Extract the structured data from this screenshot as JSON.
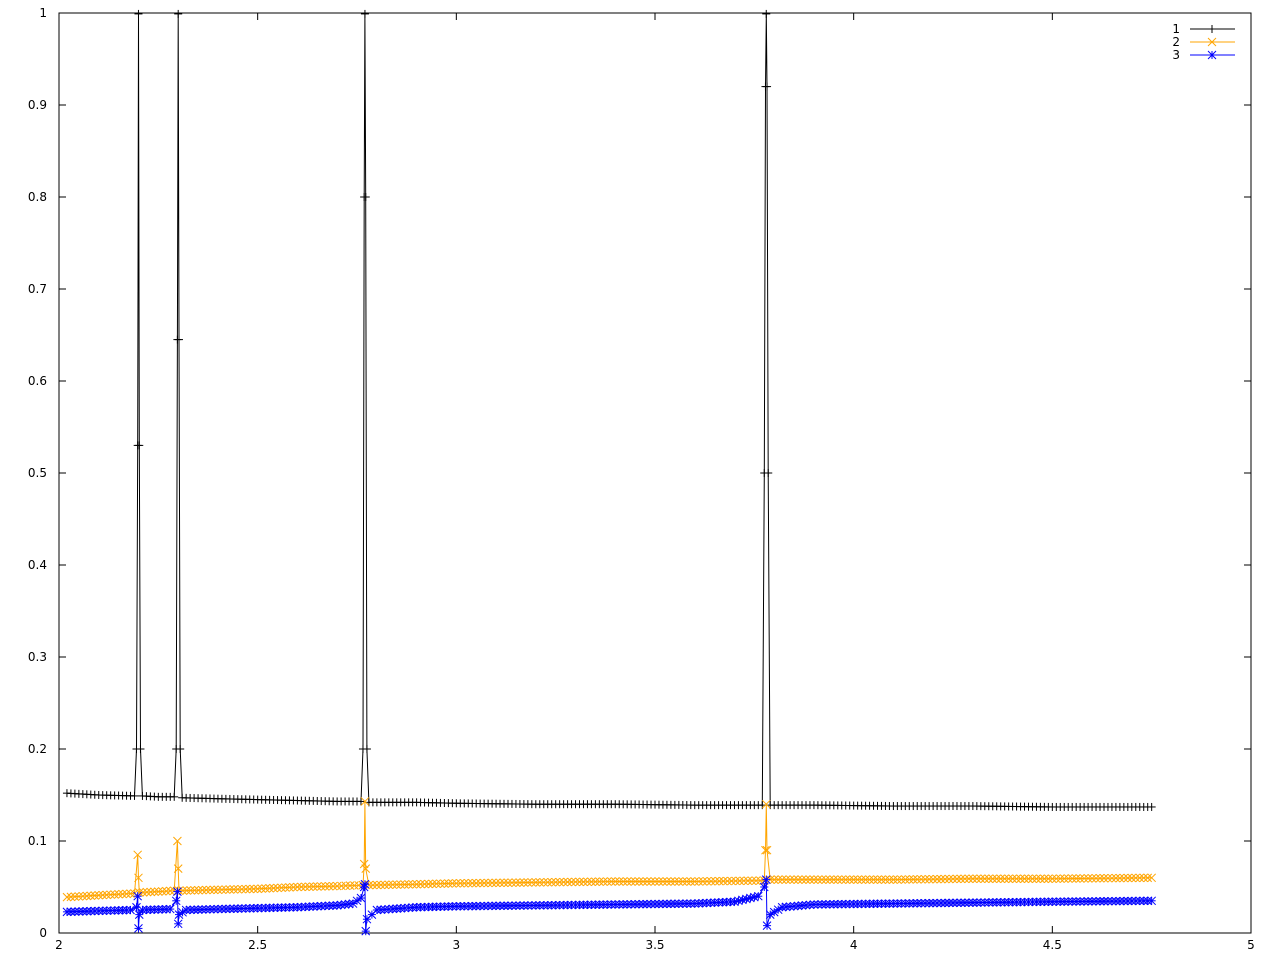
{
  "chart_data": {
    "type": "line",
    "title": "",
    "xlabel": "",
    "ylabel": "",
    "xlim": [
      2,
      5
    ],
    "ylim": [
      0,
      1
    ],
    "x_ticks": [
      "2",
      "2.5",
      "3",
      "3.5",
      "4",
      "4.5",
      "5"
    ],
    "y_ticks": [
      "0",
      "0.1",
      "0.2",
      "0.3",
      "0.4",
      "0.5",
      "0.6",
      "0.7",
      "0.8",
      "0.9",
      "1"
    ],
    "grid": false,
    "legend_position": "top-right",
    "series": [
      {
        "name": "1",
        "color": "#000000",
        "marker": "plus",
        "points": [
          [
            2.02,
            0.152
          ],
          [
            2.1,
            0.15
          ],
          [
            2.19,
            0.149
          ],
          [
            2.195,
            0.2
          ],
          [
            2.198,
            0.53
          ],
          [
            2.2,
            0.999
          ],
          [
            2.202,
            0.53
          ],
          [
            2.205,
            0.2
          ],
          [
            2.21,
            0.149
          ],
          [
            2.25,
            0.148
          ],
          [
            2.29,
            0.148
          ],
          [
            2.295,
            0.2
          ],
          [
            2.298,
            0.645
          ],
          [
            2.3,
            0.999
          ],
          [
            2.302,
            0.645
          ],
          [
            2.305,
            0.2
          ],
          [
            2.31,
            0.147
          ],
          [
            2.4,
            0.146
          ],
          [
            2.5,
            0.145
          ],
          [
            2.6,
            0.144
          ],
          [
            2.7,
            0.143
          ],
          [
            2.76,
            0.143
          ],
          [
            2.765,
            0.2
          ],
          [
            2.768,
            0.8
          ],
          [
            2.77,
            0.999
          ],
          [
            2.772,
            0.8
          ],
          [
            2.775,
            0.2
          ],
          [
            2.78,
            0.142
          ],
          [
            2.9,
            0.142
          ],
          [
            3.0,
            0.141
          ],
          [
            3.2,
            0.14
          ],
          [
            3.4,
            0.14
          ],
          [
            3.6,
            0.139
          ],
          [
            3.77,
            0.139
          ],
          [
            3.775,
            0.5
          ],
          [
            3.778,
            0.92
          ],
          [
            3.78,
            0.999
          ],
          [
            3.782,
            0.92
          ],
          [
            3.785,
            0.5
          ],
          [
            3.79,
            0.139
          ],
          [
            3.9,
            0.139
          ],
          [
            4.1,
            0.138
          ],
          [
            4.3,
            0.138
          ],
          [
            4.5,
            0.137
          ],
          [
            4.75,
            0.137
          ]
        ]
      },
      {
        "name": "2",
        "color": "#FFA500",
        "marker": "x",
        "points": [
          [
            2.02,
            0.039
          ],
          [
            2.1,
            0.041
          ],
          [
            2.19,
            0.043
          ],
          [
            2.198,
            0.085
          ],
          [
            2.2,
            0.06
          ],
          [
            2.202,
            0.044
          ],
          [
            2.25,
            0.045
          ],
          [
            2.29,
            0.046
          ],
          [
            2.298,
            0.1
          ],
          [
            2.3,
            0.07
          ],
          [
            2.302,
            0.046
          ],
          [
            2.4,
            0.047
          ],
          [
            2.5,
            0.048
          ],
          [
            2.6,
            0.05
          ],
          [
            2.7,
            0.051
          ],
          [
            2.765,
            0.052
          ],
          [
            2.768,
            0.075
          ],
          [
            2.77,
            0.143
          ],
          [
            2.772,
            0.07
          ],
          [
            2.78,
            0.052
          ],
          [
            2.9,
            0.053
          ],
          [
            3.0,
            0.054
          ],
          [
            3.2,
            0.055
          ],
          [
            3.4,
            0.056
          ],
          [
            3.6,
            0.056
          ],
          [
            3.775,
            0.057
          ],
          [
            3.778,
            0.09
          ],
          [
            3.78,
            0.14
          ],
          [
            3.782,
            0.09
          ],
          [
            3.79,
            0.058
          ],
          [
            3.9,
            0.058
          ],
          [
            4.1,
            0.058
          ],
          [
            4.3,
            0.059
          ],
          [
            4.5,
            0.059
          ],
          [
            4.75,
            0.06
          ]
        ]
      },
      {
        "name": "3",
        "color": "#0000FF",
        "marker": "star",
        "points": [
          [
            2.02,
            0.023
          ],
          [
            2.1,
            0.024
          ],
          [
            2.18,
            0.025
          ],
          [
            2.195,
            0.028
          ],
          [
            2.198,
            0.04
          ],
          [
            2.2,
            0.005
          ],
          [
            2.202,
            0.02
          ],
          [
            2.21,
            0.025
          ],
          [
            2.28,
            0.026
          ],
          [
            2.295,
            0.035
          ],
          [
            2.298,
            0.045
          ],
          [
            2.3,
            0.01
          ],
          [
            2.302,
            0.02
          ],
          [
            2.32,
            0.025
          ],
          [
            2.4,
            0.026
          ],
          [
            2.5,
            0.027
          ],
          [
            2.6,
            0.028
          ],
          [
            2.7,
            0.03
          ],
          [
            2.74,
            0.032
          ],
          [
            2.76,
            0.038
          ],
          [
            2.768,
            0.05
          ],
          [
            2.77,
            0.053
          ],
          [
            2.772,
            0.002
          ],
          [
            2.775,
            0.015
          ],
          [
            2.8,
            0.025
          ],
          [
            2.9,
            0.028
          ],
          [
            3.0,
            0.029
          ],
          [
            3.2,
            0.03
          ],
          [
            3.4,
            0.031
          ],
          [
            3.6,
            0.032
          ],
          [
            3.7,
            0.034
          ],
          [
            3.76,
            0.04
          ],
          [
            3.775,
            0.05
          ],
          [
            3.78,
            0.058
          ],
          [
            3.782,
            0.008
          ],
          [
            3.79,
            0.02
          ],
          [
            3.82,
            0.028
          ],
          [
            3.9,
            0.031
          ],
          [
            4.1,
            0.032
          ],
          [
            4.3,
            0.033
          ],
          [
            4.5,
            0.034
          ],
          [
            4.75,
            0.035
          ]
        ]
      }
    ]
  }
}
